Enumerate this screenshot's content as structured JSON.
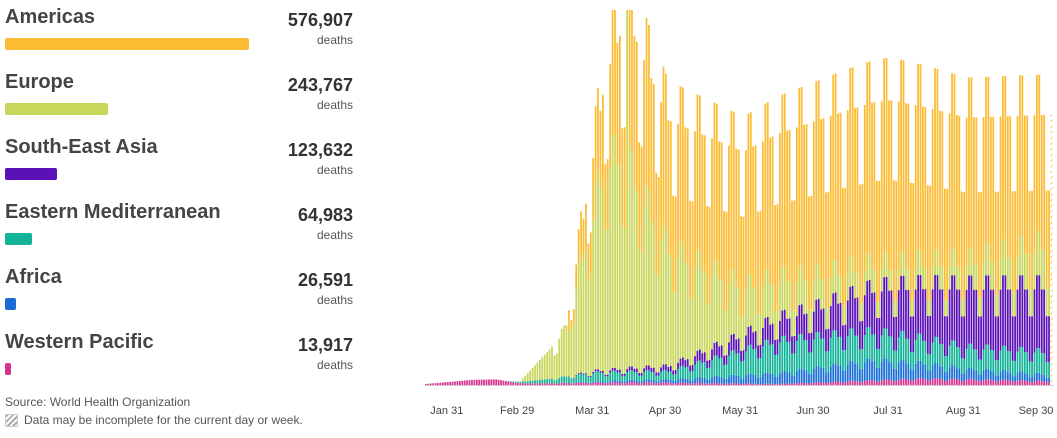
{
  "regions": [
    {
      "name": "Americas",
      "count": "576,907",
      "unit": "deaths",
      "value": 576907,
      "color": "#fbbc33"
    },
    {
      "name": "Europe",
      "count": "243,767",
      "unit": "deaths",
      "value": 243767,
      "color": "#c9d65c"
    },
    {
      "name": "South-East Asia",
      "count": "123,632",
      "unit": "deaths",
      "value": 123632,
      "color": "#5a11b8"
    },
    {
      "name": "Eastern Mediterranean",
      "count": "64,983",
      "unit": "deaths",
      "value": 64983,
      "color": "#13b397"
    },
    {
      "name": "Africa",
      "count": "26,591",
      "unit": "deaths",
      "value": 26591,
      "color": "#1a6fd6"
    },
    {
      "name": "Western Pacific",
      "count": "13,917",
      "unit": "deaths",
      "value": 13917,
      "color": "#d8348f"
    }
  ],
  "footer": {
    "source": "Source: World Health Organization",
    "note": "Data may be incomplete for the current day or week."
  },
  "chart_data": {
    "type": "bar",
    "stacked": true,
    "title": "",
    "xlabel": "",
    "ylabel": "",
    "x_range": [
      "2020-01-22",
      "2020-10-06"
    ],
    "x_ticks": [
      "Jan 31",
      "Feb 29",
      "Mar 31",
      "Apr 30",
      "May 31",
      "Jun 30",
      "Jul 31",
      "Aug 31",
      "Sep 30"
    ],
    "grid": false,
    "legend": "left",
    "incomplete_marker": "hatched last bar",
    "series_order_bottom_to_top": [
      "Western Pacific",
      "Africa",
      "Eastern Mediterranean",
      "South-East Asia",
      "Europe",
      "Americas"
    ],
    "series": [
      {
        "name": "Americas",
        "approx_daily_deaths": [
          {
            "date": "2020-03-20",
            "value": 100
          },
          {
            "date": "2020-04-01",
            "value": 1300
          },
          {
            "date": "2020-04-15",
            "value": 3000
          },
          {
            "date": "2020-05-01",
            "value": 2600
          },
          {
            "date": "2020-06-01",
            "value": 2700
          },
          {
            "date": "2020-07-01",
            "value": 3100
          },
          {
            "date": "2020-08-01",
            "value": 3300
          },
          {
            "date": "2020-09-01",
            "value": 2900
          },
          {
            "date": "2020-10-06",
            "value": 2600
          }
        ]
      },
      {
        "name": "Europe",
        "approx_daily_deaths": [
          {
            "date": "2020-03-01",
            "value": 20
          },
          {
            "date": "2020-03-20",
            "value": 900
          },
          {
            "date": "2020-04-05",
            "value": 3900
          },
          {
            "date": "2020-04-12",
            "value": 4000
          },
          {
            "date": "2020-05-01",
            "value": 2200
          },
          {
            "date": "2020-06-01",
            "value": 900
          },
          {
            "date": "2020-07-01",
            "value": 600
          },
          {
            "date": "2020-08-01",
            "value": 400
          },
          {
            "date": "2020-09-01",
            "value": 450
          },
          {
            "date": "2020-10-06",
            "value": 800
          }
        ]
      },
      {
        "name": "South-East Asia",
        "approx_daily_deaths": [
          {
            "date": "2020-03-20",
            "value": 5
          },
          {
            "date": "2020-05-01",
            "value": 100
          },
          {
            "date": "2020-06-01",
            "value": 300
          },
          {
            "date": "2020-07-01",
            "value": 550
          },
          {
            "date": "2020-08-01",
            "value": 900
          },
          {
            "date": "2020-09-01",
            "value": 1150
          },
          {
            "date": "2020-10-06",
            "value": 1250
          }
        ]
      },
      {
        "name": "Eastern Mediterranean",
        "approx_daily_deaths": [
          {
            "date": "2020-02-25",
            "value": 5
          },
          {
            "date": "2020-04-01",
            "value": 170
          },
          {
            "date": "2020-05-01",
            "value": 150
          },
          {
            "date": "2020-06-15",
            "value": 600
          },
          {
            "date": "2020-07-15",
            "value": 550
          },
          {
            "date": "2020-09-01",
            "value": 400
          },
          {
            "date": "2020-10-06",
            "value": 420
          }
        ]
      },
      {
        "name": "Africa",
        "approx_daily_deaths": [
          {
            "date": "2020-03-20",
            "value": 2
          },
          {
            "date": "2020-05-01",
            "value": 60
          },
          {
            "date": "2020-06-15",
            "value": 200
          },
          {
            "date": "2020-07-25",
            "value": 380
          },
          {
            "date": "2020-09-01",
            "value": 200
          },
          {
            "date": "2020-10-06",
            "value": 120
          }
        ]
      },
      {
        "name": "Western Pacific",
        "approx_daily_deaths": [
          {
            "date": "2020-01-22",
            "value": 20
          },
          {
            "date": "2020-02-10",
            "value": 100
          },
          {
            "date": "2020-02-20",
            "value": 110
          },
          {
            "date": "2020-03-01",
            "value": 30
          },
          {
            "date": "2020-04-15",
            "value": 50
          },
          {
            "date": "2020-06-15",
            "value": 20
          },
          {
            "date": "2020-08-15",
            "value": 120
          },
          {
            "date": "2020-10-06",
            "value": 70
          }
        ]
      }
    ]
  }
}
